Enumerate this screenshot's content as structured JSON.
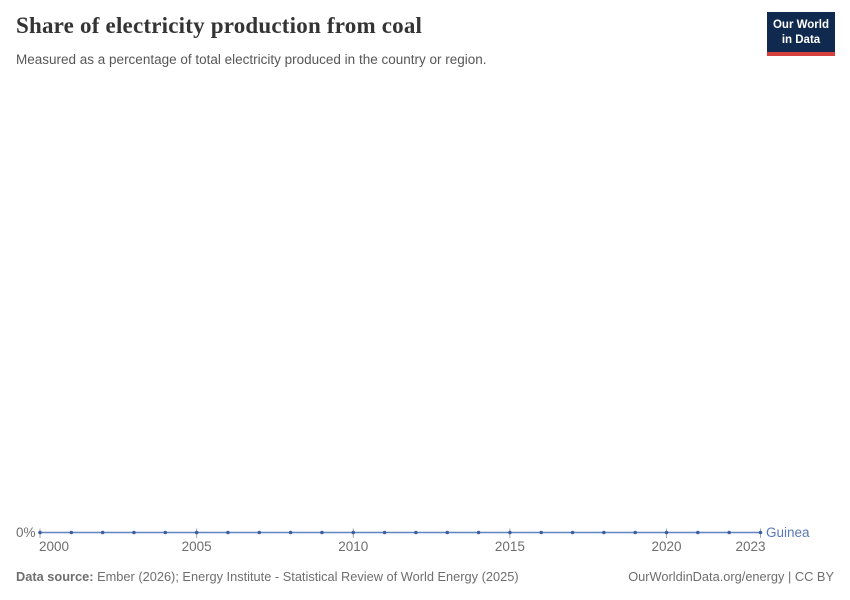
{
  "header": {
    "title": "Share of electricity production from coal",
    "subtitle": "Measured as a percentage of total electricity produced in the country or region."
  },
  "logo": {
    "line1": "Our World",
    "line2": "in Data",
    "bg_color": "#10294e",
    "accent_color": "#d7413d"
  },
  "chart_data": {
    "type": "line",
    "title": "Share of electricity production from coal",
    "xlabel": "",
    "ylabel": "",
    "x": [
      2000,
      2001,
      2002,
      2003,
      2004,
      2005,
      2006,
      2007,
      2008,
      2009,
      2010,
      2011,
      2012,
      2013,
      2014,
      2015,
      2016,
      2017,
      2018,
      2019,
      2020,
      2021,
      2022,
      2023
    ],
    "series": [
      {
        "name": "Guinea",
        "values": [
          0,
          0,
          0,
          0,
          0,
          0,
          0,
          0,
          0,
          0,
          0,
          0,
          0,
          0,
          0,
          0,
          0,
          0,
          0,
          0,
          0,
          0,
          0,
          0
        ]
      }
    ],
    "x_ticks": [
      2000,
      2005,
      2010,
      2015,
      2020,
      2023
    ],
    "x_tick_labels": [
      "2000",
      "2005",
      "2010",
      "2015",
      "2020",
      "2023"
    ],
    "y_tick_labels": [
      "0%"
    ],
    "xlim": [
      2000,
      2023
    ],
    "unit": "%",
    "grid": false,
    "legend_position": "end-of-line",
    "theme": {
      "line_color": "#6384bf",
      "dot_color": "#3d5f9e",
      "series_label_color": "#5878b6",
      "tick_color": "#a8a8a8",
      "axis_text_color": "#6e6e6e"
    }
  },
  "footer": {
    "source_label": "Data source:",
    "source_text": " Ember (2026); Energy Institute - Statistical Review of World Energy (2025)",
    "link_text": "OurWorldinData.org/energy | CC BY"
  }
}
